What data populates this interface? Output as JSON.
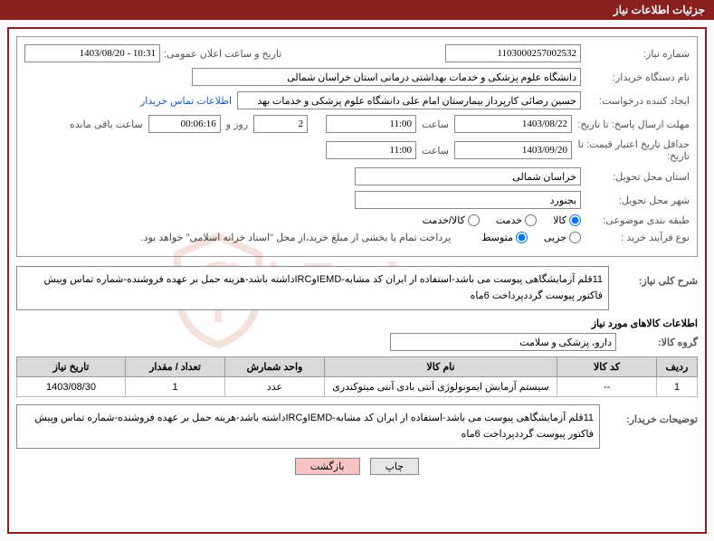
{
  "header": {
    "title": "جزئیات اطلاعات نیاز"
  },
  "colors": {
    "accent": "#8a1f1f",
    "border": "#999999",
    "table_header_bg": "#d9d9d9",
    "btn_back_bg": "#f7c4c4",
    "link": "#1a5bcc"
  },
  "fields": {
    "need_no_label": "شماره نیاز:",
    "need_no": "1103000257002532",
    "announce_label": "تاریخ و ساعت اعلان عمومی:",
    "announce": "1403/08/20 - 10:31",
    "buyer_org_label": "نام دستگاه خریدار:",
    "buyer_org": "دانشگاه علوم پزشکی و خدمات بهداشتی درمانی استان خراسان شمالی",
    "requester_label": "ایجاد کننده درخواست:",
    "requester": "حسین رضائی کارپرداز بیمارستان امام علی دانشگاه علوم پزشکی و خدمات بهد",
    "buyer_contact_link": "اطلاعات تماس خریدار",
    "reply_deadline_label": "مهلت ارسال پاسخ: تا تاریخ:",
    "reply_deadline_date": "1403/08/22",
    "hour_label": "ساعت",
    "reply_deadline_time": "11:00",
    "days": "2",
    "days_label": "روز و",
    "countdown": "00:06:16",
    "countdown_suffix": "ساعت باقی مانده",
    "price_validity_label": "حداقل تاریخ اعتبار قیمت: تا تاریخ:",
    "price_validity_date": "1403/09/20",
    "price_validity_time": "11:00",
    "province_label": "استان محل تحویل:",
    "province": "خراسان شمالی",
    "city_label": "شهر محل تحویل:",
    "city": "بجنورد",
    "category_label": "طبقه بندی موضوعی:",
    "cat_goods": "کالا",
    "cat_service": "خدمت",
    "cat_goods_service": "کالا/خدمت",
    "process_label": "نوع فرآیند خرید :",
    "proc_partial": "جزیی",
    "proc_medium": "متوسط",
    "process_note": "پرداخت تمام یا بخشی از مبلغ خرید،از محل \"اسناد خزانه اسلامی\" خواهد بود.",
    "general_desc_label": "شرح کلی نیاز:",
    "general_desc": "11قلم آزمایشگاهی پیوست می باشد-استفاده از ایران کد مشابه-IEMDوIRCداشته باشد-هزینه حمل بر عهده فروشنده-شماره تماس وپیش فاکتور پیوست گرددپرداخت 6ماه",
    "goods_info_heading": "اطلاعات کالاهای مورد نیاز",
    "goods_group_label": "گروه کالا:",
    "goods_group": "دارو، پزشکی و سلامت",
    "buyer_notes_label": "توضیحات خریدار:",
    "buyer_notes": "11قلم آزمایشگاهی پیوست می باشد-استفاده از ایران کد مشابه-IEMDوIRCداشته باشد-هزینه حمل بر عهده فروشنده-شماره تماس وپیش فاکتور پیوست گرددپرداخت 6ماه"
  },
  "table": {
    "columns": [
      "ردیف",
      "کد کالا",
      "نام کالا",
      "واحد شمارش",
      "تعداد / مقدار",
      "تاریخ نیاز"
    ],
    "rows": [
      [
        "1",
        "--",
        "سیستم آزمایش ایمونولوژی آنتی بادی آنتی میتوکندری",
        "عدد",
        "1",
        "1403/08/30"
      ]
    ],
    "col_widths": [
      "45px",
      "110px",
      "auto",
      "110px",
      "110px",
      "120px"
    ]
  },
  "buttons": {
    "print": "چاپ",
    "back": "بازگشت"
  },
  "watermark": "AriaTender.net"
}
